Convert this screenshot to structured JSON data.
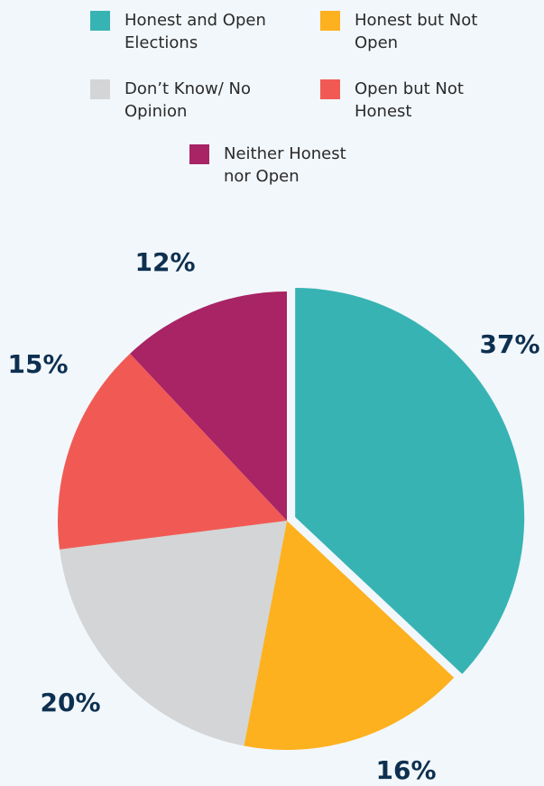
{
  "chart_data": {
    "type": "pie",
    "categories": [
      "Honest and Open Elections",
      "Honest but Not Open",
      "Don’t Know/ No Opinion",
      "Open but Not Honest",
      "Neither Honest nor Open"
    ],
    "values": [
      37,
      16,
      20,
      15,
      12
    ],
    "value_labels": [
      "37%",
      "16%",
      "20%",
      "15%",
      "12%"
    ],
    "colors": [
      "#38b3b3",
      "#fdb11f",
      "#d3d5d6",
      "#f15a54",
      "#a82465"
    ],
    "legend": "top"
  }
}
